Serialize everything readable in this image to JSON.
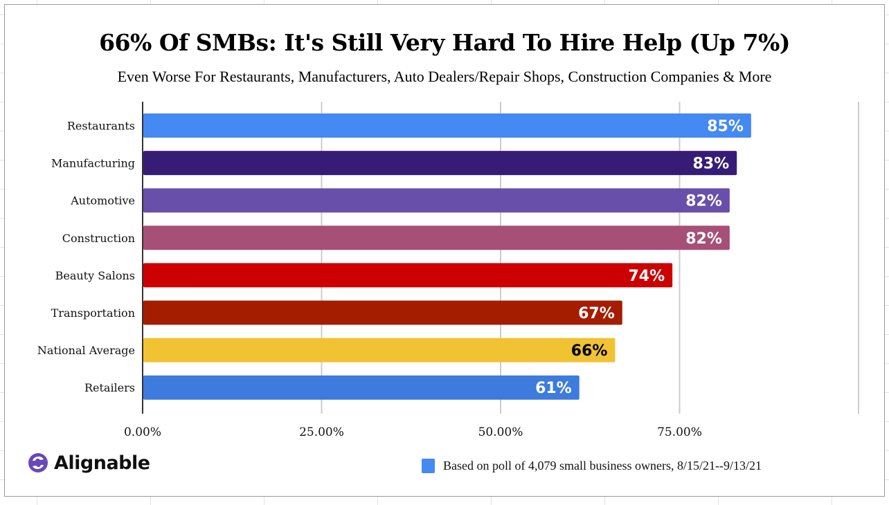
{
  "brand": {
    "name": "Alignable",
    "logo_icon": "alignable-swirl-icon",
    "logo_color": "#6a48b8"
  },
  "chart_data": {
    "type": "bar",
    "orientation": "horizontal",
    "title": "66% Of  SMBs: It's Still Very Hard To Hire Help (Up 7%)",
    "subtitle": "Even Worse For Restaurants, Manufacturers, Auto Dealers/Repair Shops, Construction Companies & More",
    "xlabel": "",
    "ylabel": "",
    "xlim": [
      0,
      100
    ],
    "x_ticks": [
      0,
      25,
      50,
      75
    ],
    "x_tick_labels": [
      "0.00%",
      "25.00%",
      "50.00%",
      "75.00%"
    ],
    "grid": true,
    "categories": [
      "Restaurants",
      "Manufacturing",
      "Automotive",
      "Construction",
      "Beauty Salons",
      "Transportation",
      "National Average",
      "Retailers"
    ],
    "values": [
      85,
      83,
      82,
      82,
      74,
      67,
      66,
      61
    ],
    "data_labels": [
      "85%",
      "83%",
      "82%",
      "82%",
      "74%",
      "67%",
      "66%",
      "61%"
    ],
    "bar_colors": [
      "#4589f2",
      "#361c76",
      "#6850aa",
      "#a64f77",
      "#cc0000",
      "#a51d00",
      "#f1c232",
      "#3d7bdc"
    ],
    "label_colors": [
      "#ffffff",
      "#ffffff",
      "#ffffff",
      "#ffffff",
      "#ffffff",
      "#ffffff",
      "#000000",
      "#ffffff"
    ],
    "legend": {
      "entries": [
        {
          "label": "Based on poll of 4,079 small business owners, 8/15/21--9/13/21",
          "color": "#4589f2"
        }
      ],
      "position": "bottom-right"
    }
  }
}
